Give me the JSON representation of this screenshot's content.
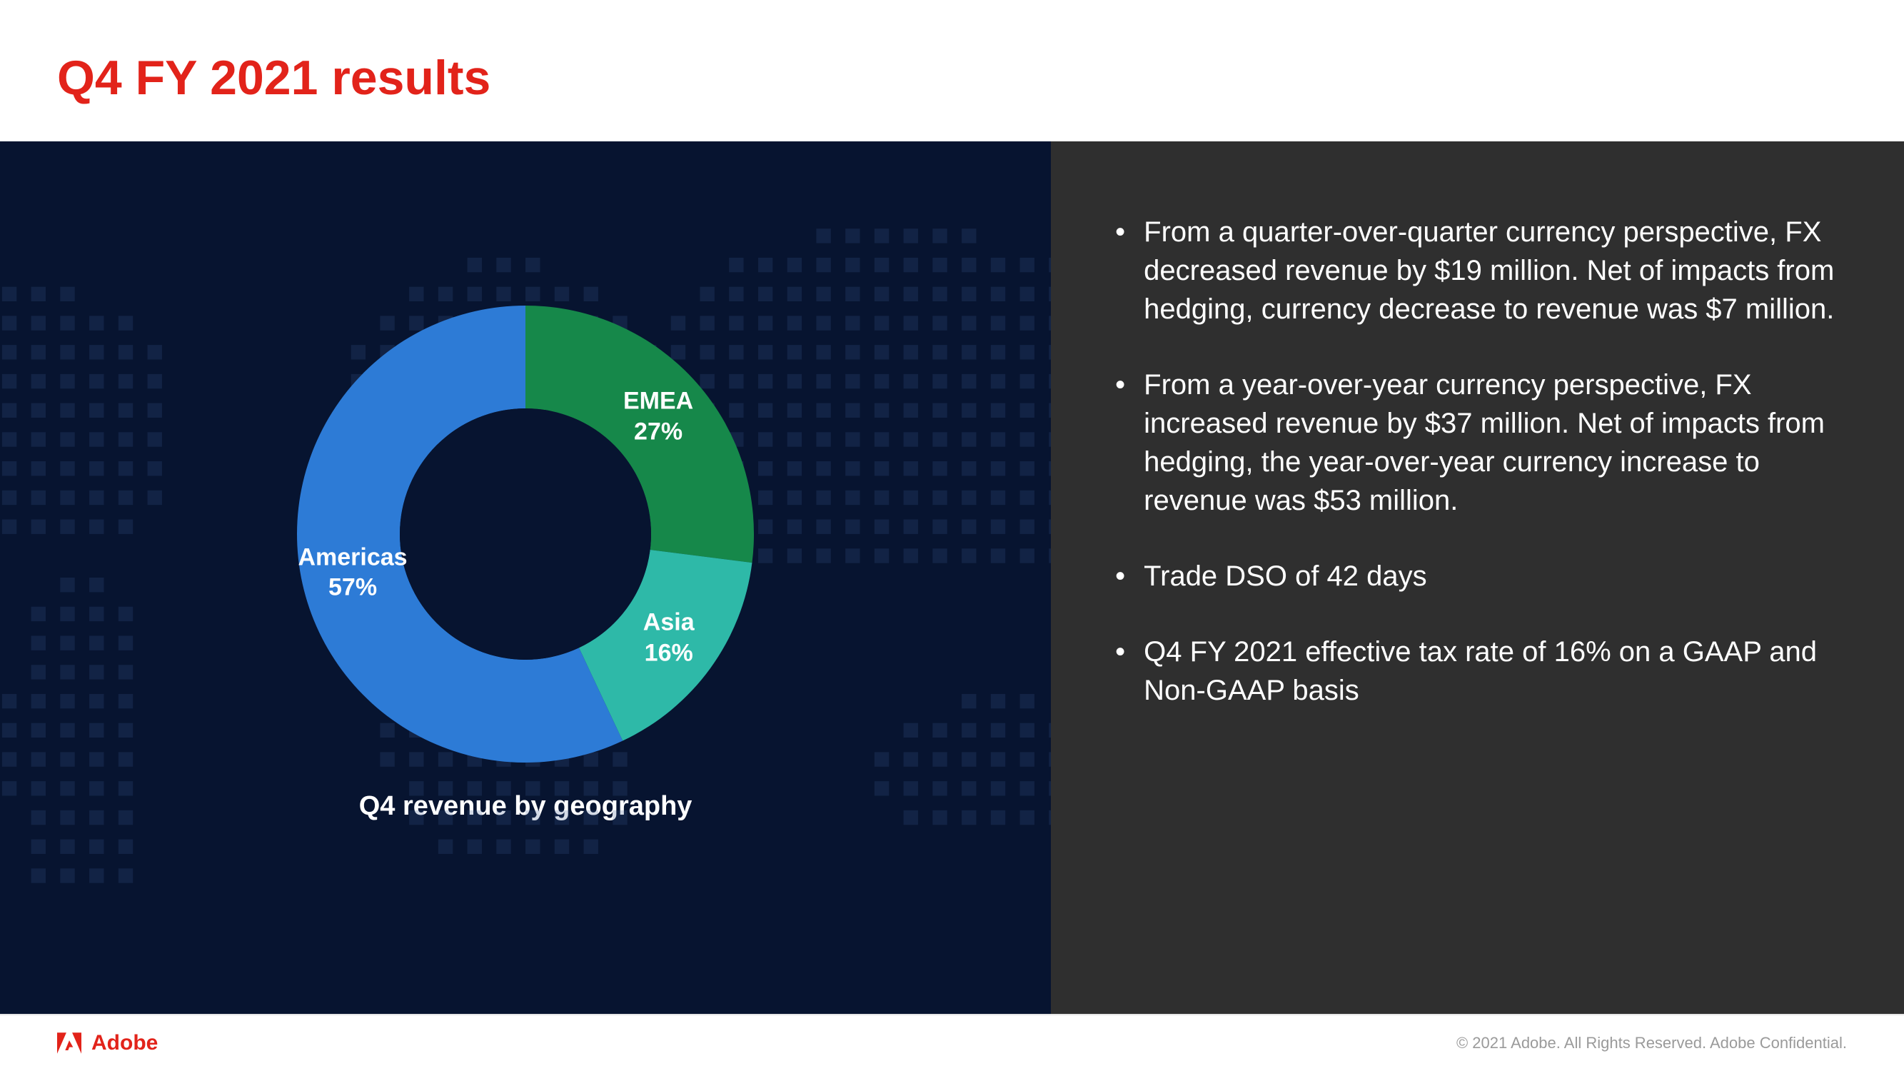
{
  "header": {
    "title": "Q4 FY 2021 results",
    "title_color": "#e2231a",
    "title_fontsize": 68
  },
  "chart": {
    "type": "donut",
    "title": "Q4 revenue by geography",
    "title_fontsize": 38,
    "title_color": "#ffffff",
    "inner_radius_ratio": 0.55,
    "slices": [
      {
        "label": "EMEA",
        "value": 27,
        "pct_text": "27%",
        "color": "#16884a"
      },
      {
        "label": "Asia",
        "value": 16,
        "pct_text": "16%",
        "color": "#2eb9a8"
      },
      {
        "label": "Americas",
        "value": 57,
        "pct_text": "57%",
        "color": "#2d7bd6"
      }
    ],
    "label_fontsize": 34,
    "label_color": "#ffffff",
    "center_color": "#071430"
  },
  "panels": {
    "left_bg": "#071430",
    "right_bg": "#2f2f2f",
    "map_dot_color": "#3a5a8f"
  },
  "bullets": {
    "fontsize": 40,
    "color": "#ffffff",
    "items": [
      "From a quarter-over-quarter currency perspective, FX decreased revenue by $19 million.  Net of impacts from hedging, currency decrease to revenue was $7 million.",
      "From a year-over-year currency perspective, FX increased revenue by $37 million.  Net of impacts from hedging, the year-over-year currency increase to revenue was $53 million.",
      "Trade DSO of 42 days",
      "Q4 FY 2021 effective tax rate of 16% on a GAAP and Non-GAAP basis"
    ]
  },
  "footer": {
    "brand_text": "Adobe",
    "brand_color": "#e2231a",
    "copyright": "© 2021 Adobe. All Rights Reserved. Adobe Confidential."
  }
}
